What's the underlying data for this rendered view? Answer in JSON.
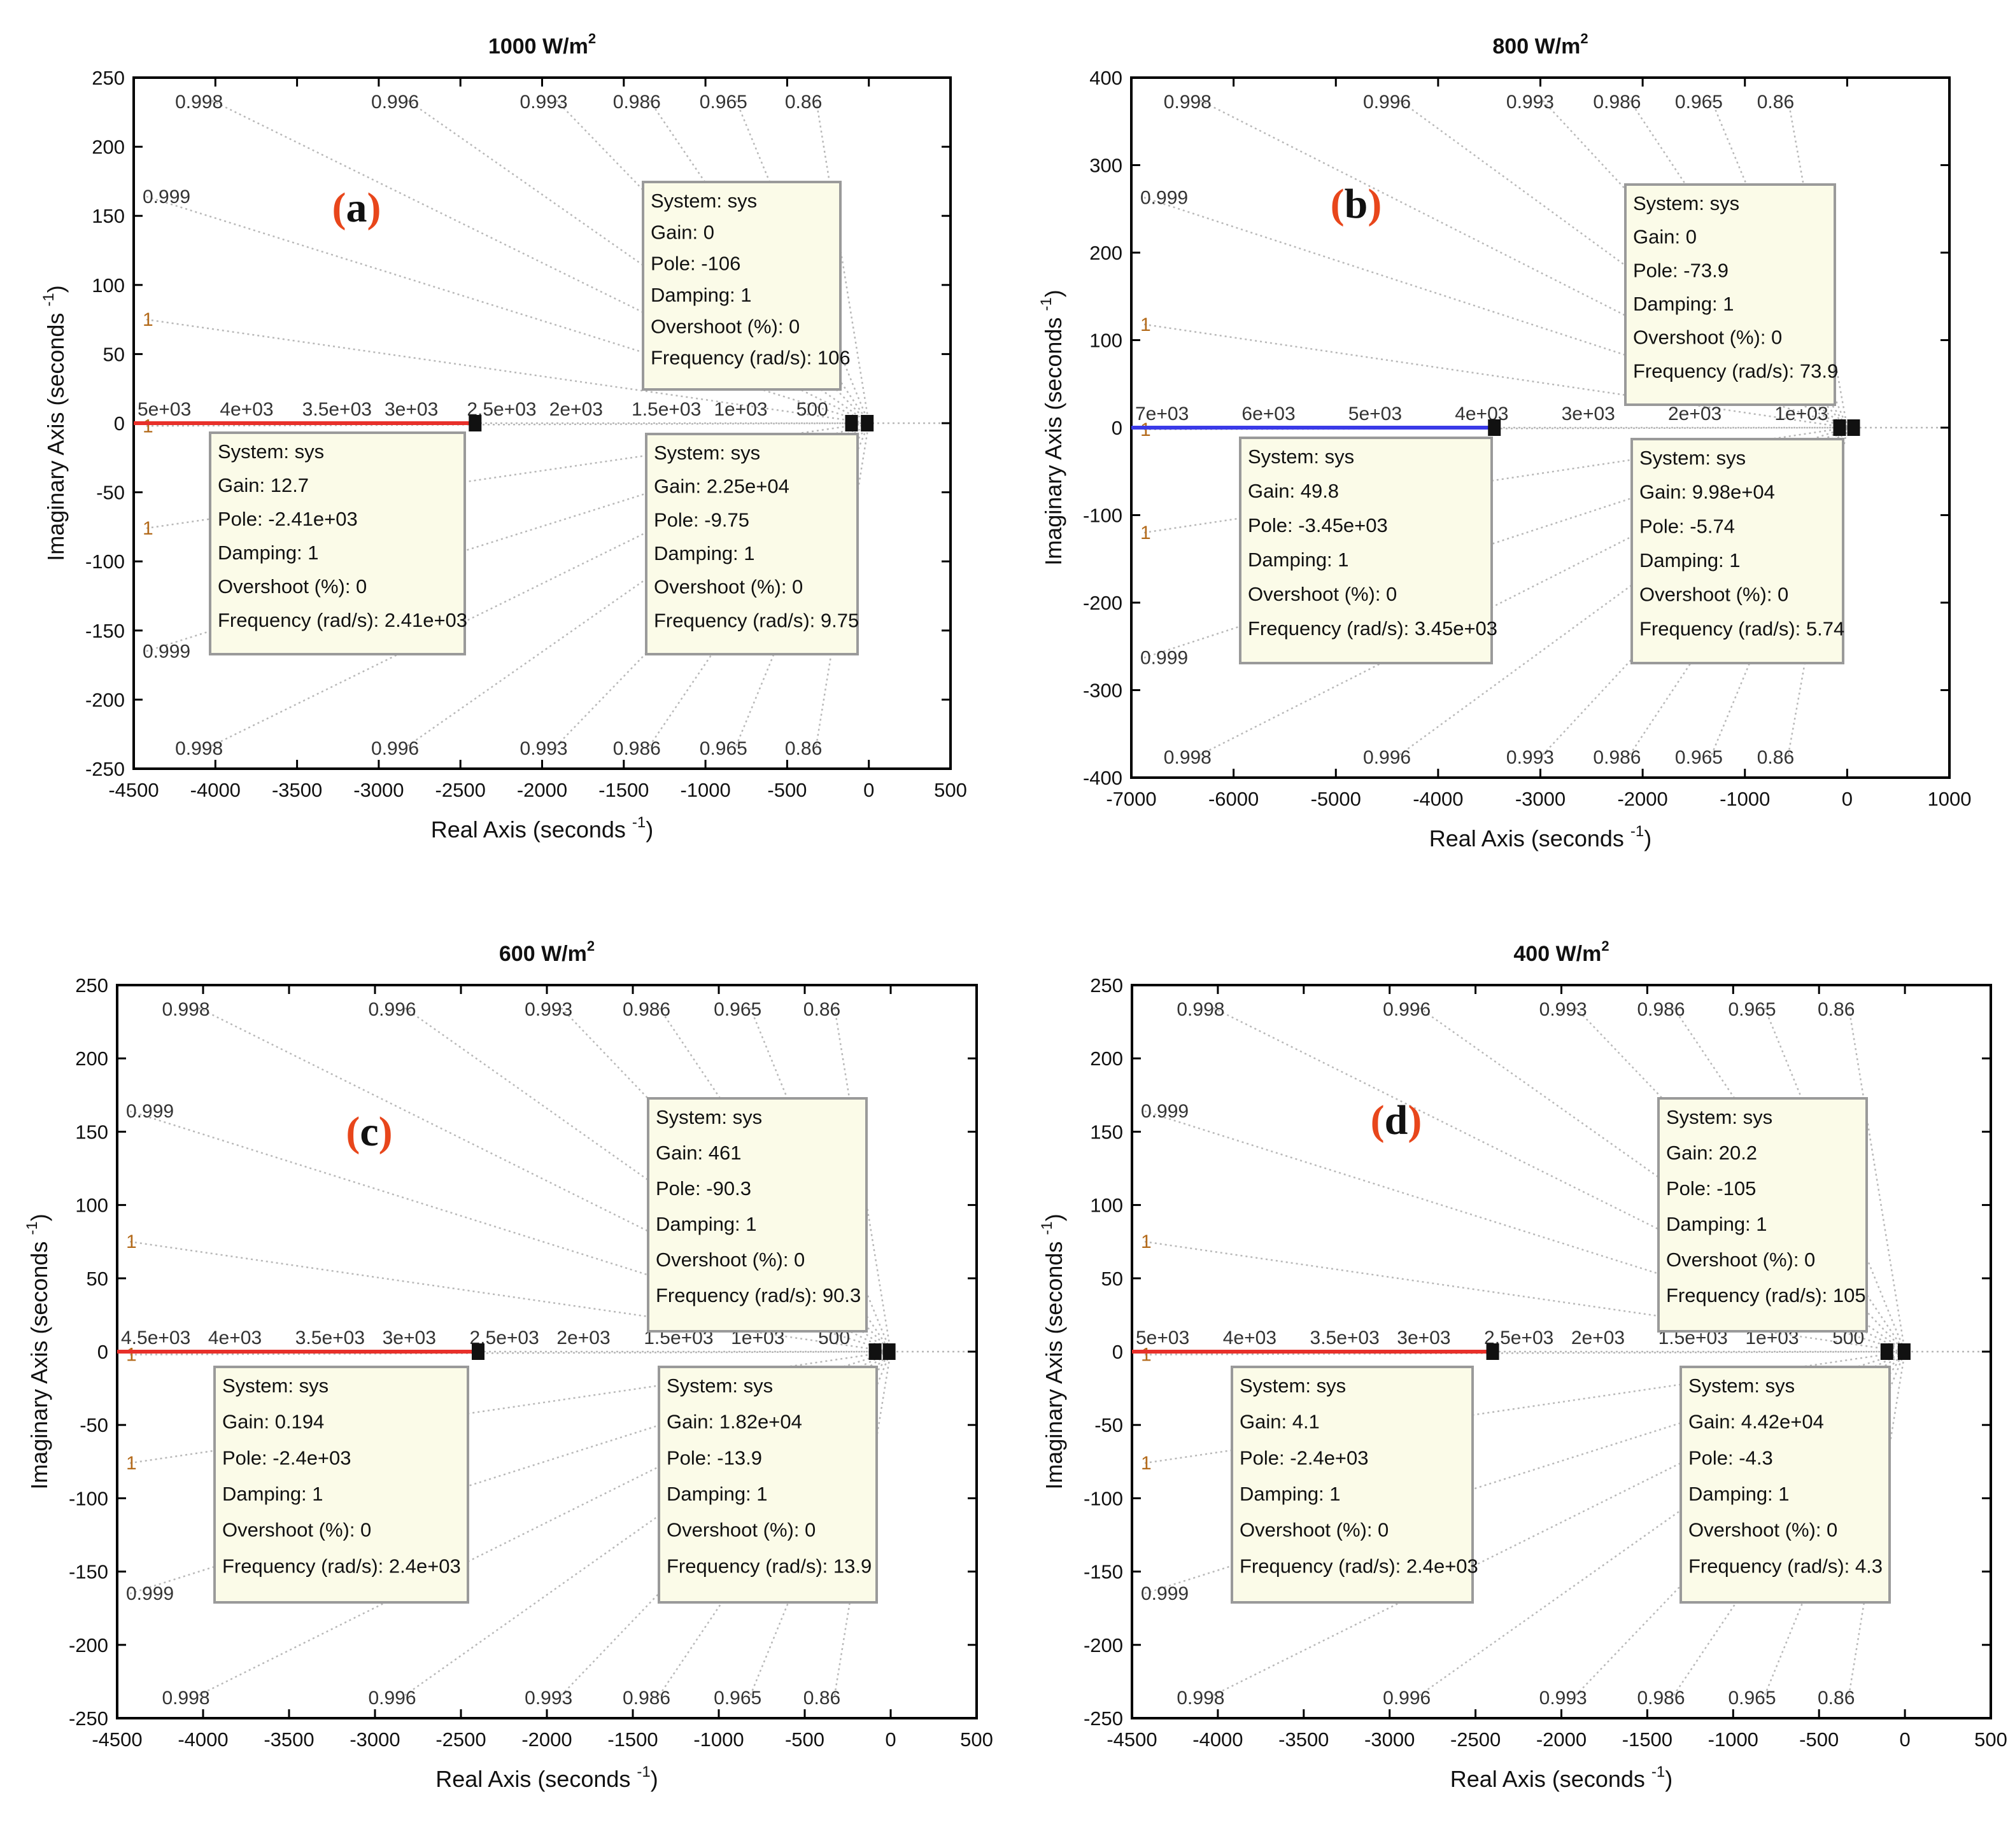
{
  "figure": {
    "xlabel": "Real Axis (seconds",
    "ylabel": "Imaginary Axis (seconds",
    "unit_exp": "-1",
    "title_unit": "W/m",
    "title_sup": "2",
    "paren_open": "(",
    "paren_close": ")"
  },
  "chart_data": [
    {
      "type": "scatter",
      "panel": "a",
      "title": "1000",
      "xlim": [
        -4500,
        500
      ],
      "ylim": [
        -250,
        250
      ],
      "xticks": [
        -4500,
        -4000,
        -3500,
        -3000,
        -2500,
        -2000,
        -1500,
        -1000,
        -500,
        0,
        500
      ],
      "yticks": [
        -250,
        -200,
        -150,
        -100,
        -50,
        0,
        50,
        100,
        150,
        200,
        250
      ],
      "locus": {
        "x": [
          -4500,
          -2410
        ],
        "color": "#e8302a"
      },
      "poles": [
        -2410,
        -106,
        -9.75
      ],
      "damping_labels_top": [
        {
          "x": -4100,
          "text": "0.998"
        },
        {
          "x": -2900,
          "text": "0.996"
        },
        {
          "x": -1990,
          "text": "0.993"
        },
        {
          "x": -1420,
          "text": "0.986"
        },
        {
          "x": -890,
          "text": "0.965"
        },
        {
          "x": -400,
          "text": "0.86"
        }
      ],
      "left_damping_labels": [
        {
          "y": 164,
          "text": "0.999"
        },
        {
          "y": 75,
          "text": "1"
        },
        {
          "y": -2,
          "text": "1"
        },
        {
          "y": -76,
          "text": "1"
        },
        {
          "y": -165,
          "text": "0.999"
        }
      ],
      "freq_labels": [
        "5e+03",
        "4e+03",
        "3.5e+03",
        "3e+03",
        "2.5e+03",
        "2e+03",
        "1.5e+03",
        "1e+03",
        "500"
      ],
      "datatips": [
        {
          "lines": [
            "System: sys",
            "Gain: 0",
            "Pole: -106",
            "Damping: 1",
            "Overshoot (%): 0",
            "Frequency (rad/s): 106"
          ]
        },
        {
          "lines": [
            "System: sys",
            "Gain: 12.7",
            "Pole: -2.41e+03",
            "Damping: 1",
            "Overshoot (%): 0",
            "Frequency (rad/s): 2.41e+03"
          ]
        },
        {
          "lines": [
            "System: sys",
            "Gain: 2.25e+04",
            "Pole: -9.75",
            "Damping: 1",
            "Overshoot (%): 0",
            "Frequency (rad/s): 9.75"
          ]
        }
      ]
    },
    {
      "type": "scatter",
      "panel": "b",
      "title": "800",
      "xlim": [
        -7000,
        1000
      ],
      "ylim": [
        -400,
        400
      ],
      "xticks": [
        -7000,
        -6000,
        -5000,
        -4000,
        -3000,
        -2000,
        -1000,
        0,
        1000
      ],
      "yticks": [
        -400,
        -300,
        -200,
        -100,
        0,
        100,
        200,
        300,
        400
      ],
      "locus": {
        "x": [
          -7000,
          -3450
        ],
        "color": "#3a3ae8"
      },
      "poles": [
        -3450,
        -73.9,
        -5.74
      ],
      "damping_labels_top": [
        {
          "x": -6450,
          "text": "0.998"
        },
        {
          "x": -4500,
          "text": "0.996"
        },
        {
          "x": -3100,
          "text": "0.993"
        },
        {
          "x": -2250,
          "text": "0.986"
        },
        {
          "x": -1450,
          "text": "0.965"
        },
        {
          "x": -700,
          "text": "0.86"
        }
      ],
      "left_damping_labels": [
        {
          "y": 263,
          "text": "0.999"
        },
        {
          "y": 118,
          "text": "1"
        },
        {
          "y": -2,
          "text": "1"
        },
        {
          "y": -120,
          "text": "1"
        },
        {
          "y": -263,
          "text": "0.999"
        }
      ],
      "freq_labels": [
        "7e+03",
        "6e+03",
        "5e+03",
        "4e+03",
        "3e+03",
        "2e+03",
        "1e+03"
      ],
      "datatips": [
        {
          "lines": [
            "System: sys",
            "Gain: 0",
            "Pole: -73.9",
            "Damping: 1",
            "Overshoot (%): 0",
            "Frequency (rad/s): 73.9"
          ]
        },
        {
          "lines": [
            "System: sys",
            "Gain: 49.8",
            "Pole: -3.45e+03",
            "Damping: 1",
            "Overshoot (%): 0",
            "Frequency (rad/s): 3.45e+03"
          ]
        },
        {
          "lines": [
            "System: sys",
            "Gain: 9.98e+04",
            "Pole: -5.74",
            "Damping: 1",
            "Overshoot (%): 0",
            "Frequency (rad/s): 5.74"
          ]
        }
      ]
    },
    {
      "type": "scatter",
      "panel": "c",
      "title": "600",
      "xlim": [
        -4500,
        500
      ],
      "ylim": [
        -250,
        250
      ],
      "xticks": [
        -4500,
        -4000,
        -3500,
        -3000,
        -2500,
        -2000,
        -1500,
        -1000,
        -500,
        0,
        500
      ],
      "yticks": [
        -250,
        -200,
        -150,
        -100,
        -50,
        0,
        50,
        100,
        150,
        200,
        250
      ],
      "locus": {
        "x": [
          -4500,
          -2400
        ],
        "color": "#e8302a"
      },
      "poles": [
        -2400,
        -90.3,
        -13.9
      ],
      "damping_labels_top": [
        {
          "x": -4100,
          "text": "0.998"
        },
        {
          "x": -2900,
          "text": "0.996"
        },
        {
          "x": -1990,
          "text": "0.993"
        },
        {
          "x": -1420,
          "text": "0.986"
        },
        {
          "x": -890,
          "text": "0.965"
        },
        {
          "x": -400,
          "text": "0.86"
        }
      ],
      "left_damping_labels": [
        {
          "y": 164,
          "text": "0.999"
        },
        {
          "y": 75,
          "text": "1"
        },
        {
          "y": -2,
          "text": "1"
        },
        {
          "y": -76,
          "text": "1"
        },
        {
          "y": -165,
          "text": "0.999"
        }
      ],
      "freq_labels": [
        "4.5e+03",
        "4e+03",
        "3.5e+03",
        "3e+03",
        "2.5e+03",
        "2e+03",
        "1.5e+03",
        "1e+03",
        "500"
      ],
      "datatips": [
        {
          "lines": [
            "System: sys",
            "Gain: 461",
            "Pole: -90.3",
            "Damping: 1",
            "Overshoot (%): 0",
            "Frequency (rad/s): 90.3"
          ]
        },
        {
          "lines": [
            "System: sys",
            "Gain: 0.194",
            "Pole: -2.4e+03",
            "Damping: 1",
            "Overshoot (%): 0",
            "Frequency (rad/s): 2.4e+03"
          ]
        },
        {
          "lines": [
            "System: sys",
            "Gain: 1.82e+04",
            "Pole: -13.9",
            "Damping: 1",
            "Overshoot (%): 0",
            "Frequency (rad/s): 13.9"
          ]
        }
      ]
    },
    {
      "type": "scatter",
      "panel": "d",
      "title": "400",
      "xlim": [
        -4500,
        500
      ],
      "ylim": [
        -250,
        250
      ],
      "xticks": [
        -4500,
        -4000,
        -3500,
        -3000,
        -2500,
        -2000,
        -1500,
        -1000,
        -500,
        0,
        500
      ],
      "yticks": [
        -250,
        -200,
        -150,
        -100,
        -50,
        0,
        50,
        100,
        150,
        200,
        250
      ],
      "locus": {
        "x": [
          -4500,
          -2400
        ],
        "color": "#e8302a"
      },
      "poles": [
        -2400,
        -105,
        -4.3
      ],
      "damping_labels_top": [
        {
          "x": -4100,
          "text": "0.998"
        },
        {
          "x": -2900,
          "text": "0.996"
        },
        {
          "x": -1990,
          "text": "0.993"
        },
        {
          "x": -1420,
          "text": "0.986"
        },
        {
          "x": -890,
          "text": "0.965"
        },
        {
          "x": -400,
          "text": "0.86"
        }
      ],
      "left_damping_labels": [
        {
          "y": 164,
          "text": "0.999"
        },
        {
          "y": 75,
          "text": "1"
        },
        {
          "y": -2,
          "text": "1"
        },
        {
          "y": -76,
          "text": "1"
        },
        {
          "y": -165,
          "text": "0.999"
        }
      ],
      "freq_labels": [
        "5e+03",
        "4e+03",
        "3.5e+03",
        "3e+03",
        "2.5e+03",
        "2e+03",
        "1.5e+03",
        "1e+03",
        "500"
      ],
      "datatips": [
        {
          "lines": [
            "System: sys",
            "Gain: 20.2",
            "Pole: -105",
            "Damping: 1",
            "Overshoot (%): 0",
            "Frequency (rad/s): 105"
          ]
        },
        {
          "lines": [
            "System: sys",
            "Gain: 4.1",
            "Pole: -2.4e+03",
            "Damping: 1",
            "Overshoot (%): 0",
            "Frequency (rad/s): 2.4e+03"
          ]
        },
        {
          "lines": [
            "System: sys",
            "Gain: 4.42e+04",
            "Pole: -4.3",
            "Damping: 1",
            "Overshoot (%): 0",
            "Frequency (rad/s): 4.3"
          ]
        }
      ]
    }
  ]
}
